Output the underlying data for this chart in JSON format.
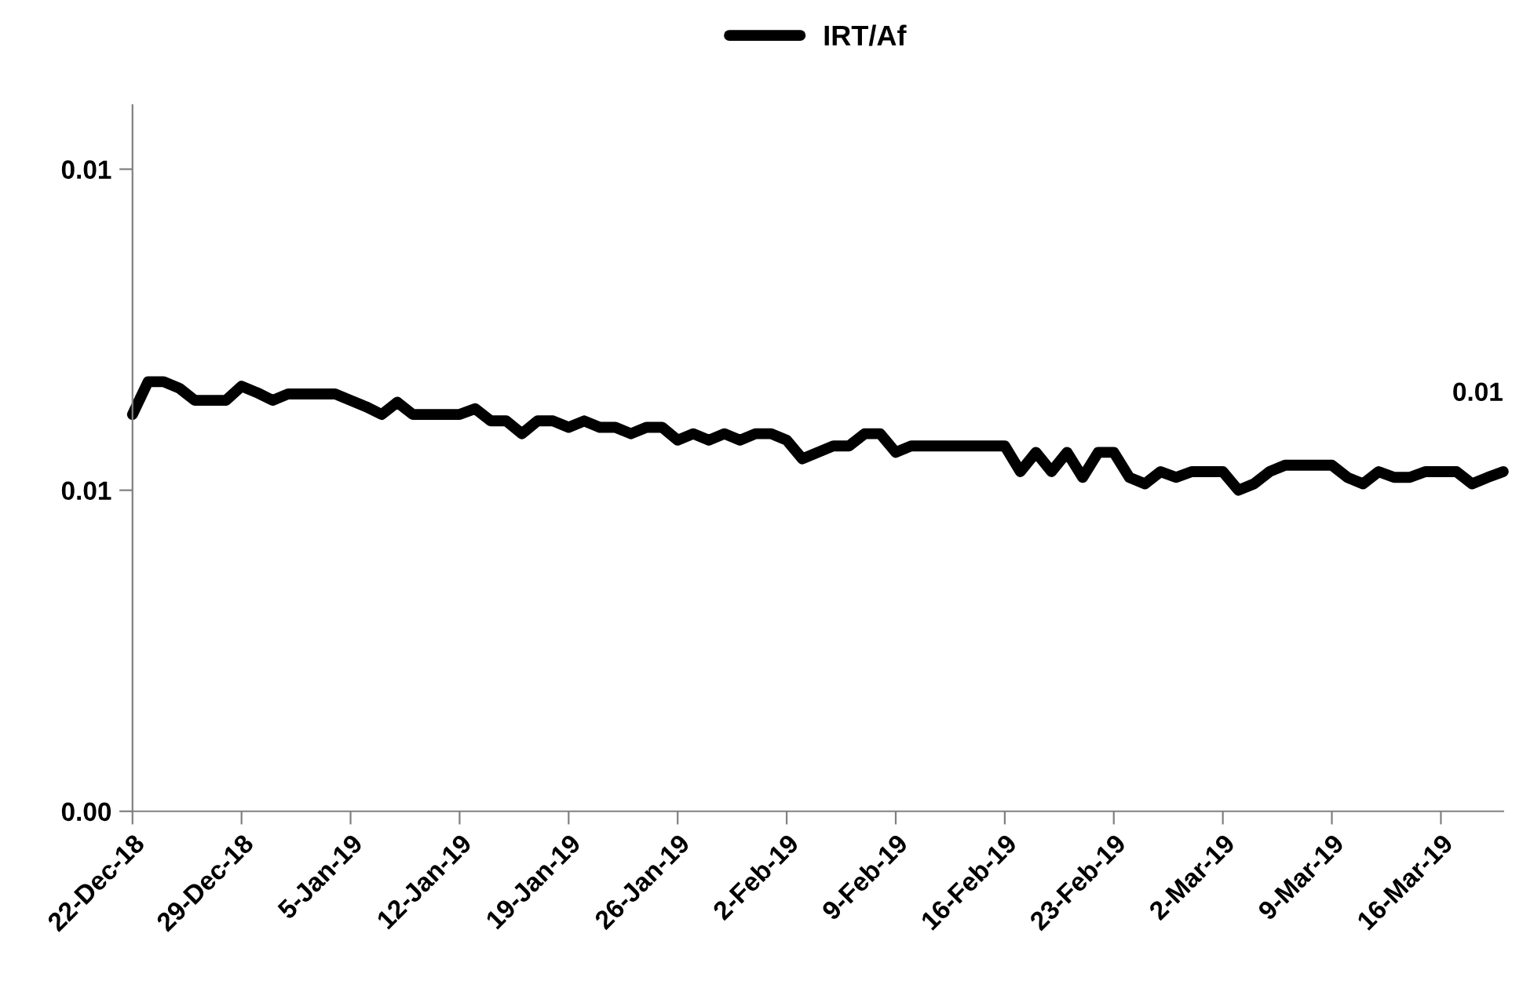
{
  "chart_data": {
    "type": "line",
    "categories": [
      "22-Dec-18",
      null,
      null,
      null,
      null,
      null,
      null,
      "29-Dec-18",
      null,
      null,
      null,
      null,
      null,
      null,
      "5-Jan-19",
      null,
      null,
      null,
      null,
      null,
      null,
      "12-Jan-19",
      null,
      null,
      null,
      null,
      null,
      null,
      "19-Jan-19",
      null,
      null,
      null,
      null,
      null,
      null,
      "26-Jan-19",
      null,
      null,
      null,
      null,
      null,
      null,
      "2-Feb-19",
      null,
      null,
      null,
      null,
      null,
      null,
      "9-Feb-19",
      null,
      null,
      null,
      null,
      null,
      null,
      "16-Feb-19",
      null,
      null,
      null,
      null,
      null,
      null,
      "23-Feb-19",
      null,
      null,
      null,
      null,
      null,
      null,
      "2-Mar-19",
      null,
      null,
      null,
      null,
      null,
      null,
      "9-Mar-19",
      null,
      null,
      null,
      null,
      null,
      null,
      "16-Mar-19",
      null,
      null,
      null,
      null
    ],
    "series": [
      {
        "name": "IRT/Af",
        "color": "#000000",
        "values": [
          0.00618,
          0.00669,
          0.00669,
          0.00659,
          0.0064,
          0.0064,
          0.0064,
          0.00662,
          0.00652,
          0.0064,
          0.0065,
          0.0065,
          0.0065,
          0.0065,
          0.0064,
          0.0063,
          0.00618,
          0.00637,
          0.00618,
          0.00618,
          0.00618,
          0.00618,
          0.00627,
          0.00608,
          0.00608,
          0.00588,
          0.00608,
          0.00608,
          0.00598,
          0.00608,
          0.00598,
          0.00598,
          0.00588,
          0.00598,
          0.00598,
          0.00578,
          0.00588,
          0.00578,
          0.00588,
          0.00578,
          0.00588,
          0.00588,
          0.00578,
          0.00549,
          0.00559,
          0.00569,
          0.00569,
          0.00588,
          0.00588,
          0.00559,
          0.00569,
          0.00569,
          0.00569,
          0.00569,
          0.00569,
          0.00569,
          0.00569,
          0.00529,
          0.00559,
          0.00529,
          0.00559,
          0.0052,
          0.00559,
          0.00559,
          0.0052,
          0.0051,
          0.00529,
          0.0052,
          0.00529,
          0.00529,
          0.00529,
          0.005,
          0.0051,
          0.00529,
          0.00539,
          0.00539,
          0.00539,
          0.00539,
          0.0052,
          0.0051,
          0.00529,
          0.0052,
          0.0052,
          0.00529,
          0.00529,
          0.00529,
          0.0051,
          0.0052,
          0.00529
        ],
        "value_labels": [
          null,
          null,
          null,
          null,
          null,
          null,
          null,
          null,
          null,
          null,
          null,
          null,
          null,
          null,
          null,
          null,
          null,
          null,
          null,
          null,
          null,
          null,
          null,
          null,
          null,
          null,
          null,
          null,
          null,
          null,
          null,
          null,
          null,
          null,
          null,
          null,
          null,
          null,
          null,
          null,
          null,
          null,
          null,
          null,
          null,
          null,
          null,
          null,
          null,
          null,
          null,
          null,
          null,
          null,
          null,
          null,
          null,
          null,
          null,
          null,
          null,
          null,
          null,
          null,
          null,
          null,
          null,
          null,
          null,
          null,
          null,
          null,
          null,
          null,
          null,
          null,
          null,
          null,
          null,
          null,
          null,
          null,
          null,
          null,
          null,
          null,
          null,
          null,
          "0.01"
        ]
      }
    ],
    "ylim": [
      0,
      0.011
    ],
    "yticks": [
      {
        "value": 0,
        "label": "0.00"
      },
      {
        "value": 0.005,
        "label": "0.01"
      },
      {
        "value": 0.01,
        "label": "0.01"
      }
    ],
    "grid": false,
    "legend": "top",
    "marker": "none",
    "line_style": "solid"
  }
}
